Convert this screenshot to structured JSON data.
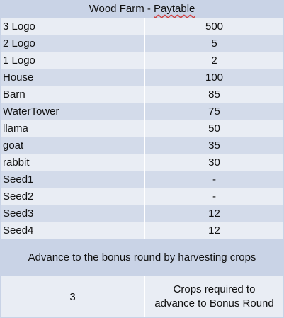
{
  "title": {
    "game": "Wood Farm - ",
    "paytable": "Paytable"
  },
  "paytable": [
    {
      "symbol": "3 Logo",
      "payout": "500"
    },
    {
      "symbol": "2 Logo",
      "payout": "5"
    },
    {
      "symbol": "1 Logo",
      "payout": "2"
    },
    {
      "symbol": "House",
      "payout": "100"
    },
    {
      "symbol": "Barn",
      "payout": "85"
    },
    {
      "symbol": "WaterTower",
      "payout": "75"
    },
    {
      "symbol": "llama",
      "payout": "50"
    },
    {
      "symbol": "goat",
      "payout": "35"
    },
    {
      "symbol": "rabbit",
      "payout": "30"
    },
    {
      "symbol": "Seed1",
      "payout": "-"
    },
    {
      "symbol": "Seed2",
      "payout": "-"
    },
    {
      "symbol": "Seed3",
      "payout": "12"
    },
    {
      "symbol": "Seed4",
      "payout": "12"
    }
  ],
  "bonus": {
    "banner": "Advance to the bonus round by harvesting crops",
    "count": "3",
    "description_line1": "Crops required to",
    "description_line2": "advance to Bonus Round"
  },
  "colors": {
    "header_bg": "#c9d3e6",
    "row_light": "#e9edf4",
    "row_dark": "#d3dbea"
  }
}
